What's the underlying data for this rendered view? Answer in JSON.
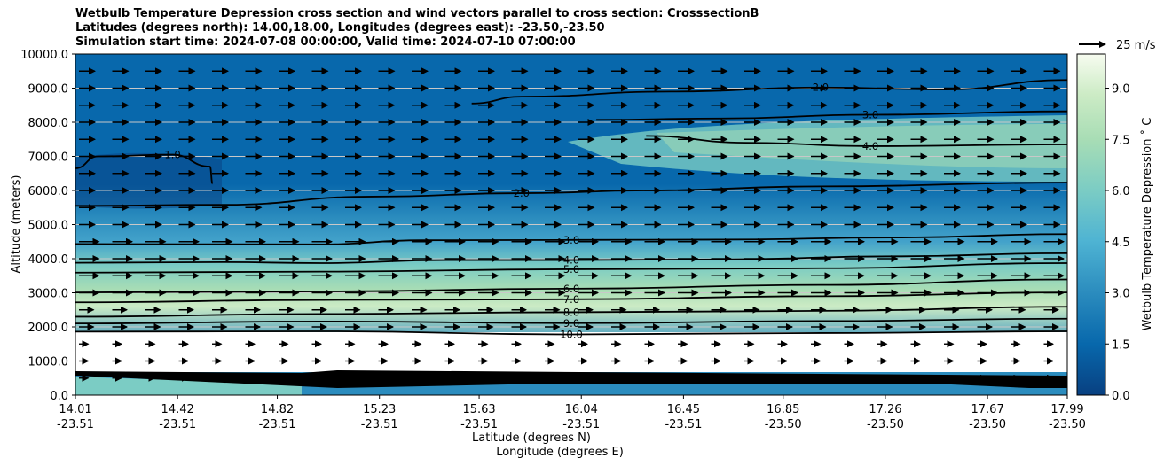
{
  "chart_data": {
    "type": "heatmap",
    "title_lines": [
      "Wetbulb Temperature Depression cross section and wind vectors parallel to cross section: CrosssectionB",
      "Latitudes (degrees north): 14.00,18.00, Longitudes (degrees east): -23.50,-23.50",
      "Simulation start time: 2024-07-08 00:00:00, Valid time: 2024-07-10 07:00:00"
    ],
    "xlabel": "Latitude (degrees N)",
    "xlabel2": "Longitude (degrees E)",
    "ylabel": "Altitude (meters)",
    "colorbar_label": "Wetbulb Temperature Depression ˚ C",
    "ylim": [
      0,
      10000
    ],
    "y_ticks": [
      "0.0",
      "1000.0",
      "2000.0",
      "3000.0",
      "4000.0",
      "5000.0",
      "6000.0",
      "7000.0",
      "8000.0",
      "9000.0",
      "10000.0"
    ],
    "y_tick_values": [
      0,
      1000,
      2000,
      3000,
      4000,
      5000,
      6000,
      7000,
      8000,
      9000,
      10000
    ],
    "x_tick_lat": [
      "14.01",
      "14.42",
      "14.82",
      "15.23",
      "15.63",
      "16.04",
      "16.45",
      "16.85",
      "17.26",
      "17.67",
      "17.99"
    ],
    "x_tick_lon": [
      "-23.51",
      "-23.51",
      "-23.51",
      "-23.51",
      "-23.51",
      "-23.51",
      "-23.51",
      "-23.50",
      "-23.50",
      "-23.50",
      "-23.50"
    ],
    "x_tick_values": [
      14.01,
      14.42,
      14.82,
      15.23,
      15.63,
      16.04,
      16.45,
      16.85,
      17.26,
      17.67,
      17.99
    ],
    "xlim": [
      14.01,
      17.99
    ],
    "colorbar_ticks": [
      "0.0",
      "1.5",
      "3.0",
      "4.5",
      "6.0",
      "7.5",
      "9.0"
    ],
    "colorbar_tick_values": [
      0,
      1.5,
      3,
      4.5,
      6,
      7.5,
      9
    ],
    "colorbar_range": [
      0,
      10
    ],
    "colormap": [
      "#08589e",
      "#2b8cbe",
      "#4eb3d3",
      "#7bccc4",
      "#a8ddb5",
      "#ccebc5",
      "#f7fcf0"
    ],
    "wind_reference": "25 m/s",
    "grid": "horizontal",
    "contour_levels": [
      {
        "label": "1.0",
        "value": 1
      },
      {
        "label": "2.0",
        "value": 2
      },
      {
        "label": "3.0",
        "value": 3
      },
      {
        "label": "4.0",
        "value": 4
      },
      {
        "label": "5.0",
        "value": 5
      },
      {
        "label": "6.0",
        "value": 6
      },
      {
        "label": "7.0",
        "value": 7
      },
      {
        "label": "8.0",
        "value": 8
      },
      {
        "label": "9.0",
        "value": 9
      },
      {
        "label": "10.0",
        "value": 10
      }
    ],
    "contours": [
      {
        "label": "3.0",
        "points": [
          [
            14.01,
            4430
          ],
          [
            15.0,
            4420
          ],
          [
            15.4,
            4540
          ],
          [
            16.0,
            4550
          ],
          [
            16.6,
            4560
          ],
          [
            17.3,
            4620
          ],
          [
            17.99,
            4720
          ]
        ]
      },
      {
        "label": "4.0",
        "points": [
          [
            14.01,
            3880
          ],
          [
            14.6,
            3900
          ],
          [
            15.0,
            3870
          ],
          [
            15.5,
            3960
          ],
          [
            16.0,
            3960
          ],
          [
            16.6,
            3980
          ],
          [
            17.3,
            4070
          ],
          [
            17.99,
            4160
          ]
        ]
      },
      {
        "label": "5.0",
        "points": [
          [
            14.01,
            3590
          ],
          [
            15.0,
            3620
          ],
          [
            16.0,
            3690
          ],
          [
            17.0,
            3720
          ],
          [
            17.99,
            3870
          ]
        ]
      },
      {
        "label": "6.0",
        "points": [
          [
            14.01,
            3010
          ],
          [
            15.0,
            3040
          ],
          [
            16.0,
            3120
          ],
          [
            17.0,
            3230
          ],
          [
            17.99,
            3390
          ]
        ]
      },
      {
        "label": "7.0",
        "points": [
          [
            14.01,
            2720
          ],
          [
            15.0,
            2790
          ],
          [
            16.0,
            2810
          ],
          [
            17.0,
            2900
          ],
          [
            17.99,
            3010
          ]
        ]
      },
      {
        "label": "8.0",
        "points": [
          [
            14.01,
            2300
          ],
          [
            15.0,
            2380
          ],
          [
            16.0,
            2430
          ],
          [
            17.0,
            2470
          ],
          [
            17.99,
            2590
          ]
        ]
      },
      {
        "label": "9.0",
        "points": [
          [
            14.01,
            2100
          ],
          [
            15.0,
            2160
          ],
          [
            16.0,
            2110
          ],
          [
            17.0,
            2170
          ],
          [
            17.99,
            2240
          ]
        ]
      },
      {
        "label": "10.0",
        "points": [
          [
            14.01,
            1860
          ],
          [
            15.0,
            1870
          ],
          [
            16.0,
            1780
          ],
          [
            17.0,
            1820
          ],
          [
            17.99,
            1870
          ]
        ]
      },
      {
        "label": "2.0",
        "points": [
          [
            14.01,
            5550
          ],
          [
            14.6,
            5580
          ],
          [
            15.2,
            5820
          ],
          [
            15.8,
            5920
          ],
          [
            16.3,
            6000
          ],
          [
            17.0,
            6120
          ],
          [
            17.99,
            6230
          ]
        ]
      },
      {
        "label": "1.0",
        "points": [
          [
            14.01,
            6650
          ],
          [
            14.1,
            7000
          ],
          [
            14.4,
            7050
          ],
          [
            14.55,
            6700
          ],
          [
            14.56,
            6200
          ]
        ]
      },
      {
        "label": "2.0",
        "points": [
          [
            15.6,
            8550
          ],
          [
            15.8,
            8750
          ],
          [
            16.4,
            8900
          ],
          [
            17.0,
            9020
          ],
          [
            17.5,
            8960
          ],
          [
            17.99,
            9240
          ]
        ]
      },
      {
        "label": "3.0",
        "points": [
          [
            16.1,
            8070
          ],
          [
            16.6,
            8110
          ],
          [
            17.2,
            8220
          ],
          [
            17.99,
            8320
          ]
        ]
      },
      {
        "label": "4.0",
        "points": [
          [
            16.3,
            7600
          ],
          [
            16.7,
            7400
          ],
          [
            17.2,
            7300
          ],
          [
            17.99,
            7350
          ]
        ]
      }
    ],
    "wind": {
      "u": 25,
      "v": 0
    }
  }
}
